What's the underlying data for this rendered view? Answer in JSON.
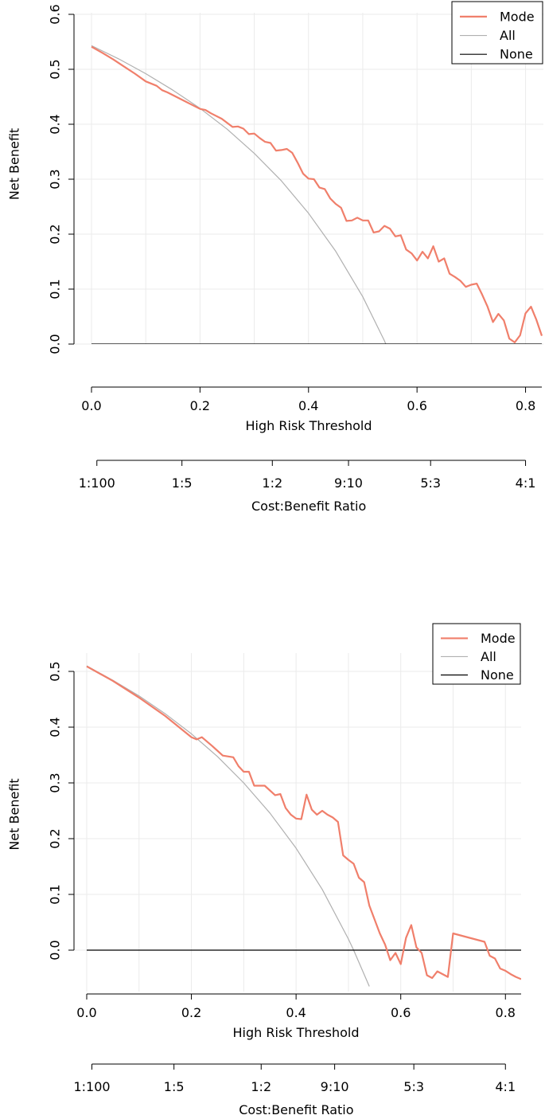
{
  "chart_data": [
    {
      "type": "line",
      "xlabel": "High Risk Threshold",
      "ylabel": "Net Benefit",
      "xlim": [
        0,
        0.83
      ],
      "ylim": [
        0,
        0.6
      ],
      "xticks": [
        "0.0",
        "0.2",
        "0.4",
        "0.6",
        "0.8"
      ],
      "yticks": [
        "0.0",
        "0.1",
        "0.2",
        "0.3",
        "0.4",
        "0.5",
        "0.6"
      ],
      "grid": true,
      "legend_position": "top-right",
      "colors": {
        "model": "#f07f6b",
        "all": "#b0b0b0",
        "none": "#000000",
        "grid": "#ebebeb"
      },
      "series": [
        {
          "name": "Mode",
          "x": [
            0,
            0.02,
            0.04,
            0.06,
            0.08,
            0.1,
            0.12,
            0.13,
            0.14,
            0.16,
            0.18,
            0.2,
            0.21,
            0.22,
            0.24,
            0.26,
            0.27,
            0.28,
            0.29,
            0.3,
            0.31,
            0.32,
            0.33,
            0.34,
            0.35,
            0.36,
            0.37,
            0.38,
            0.39,
            0.4,
            0.41,
            0.42,
            0.43,
            0.44,
            0.45,
            0.46,
            0.47,
            0.48,
            0.49,
            0.5,
            0.51,
            0.52,
            0.53,
            0.54,
            0.55,
            0.56,
            0.57,
            0.58,
            0.59,
            0.6,
            0.61,
            0.62,
            0.63,
            0.64,
            0.65,
            0.66,
            0.67,
            0.68,
            0.69,
            0.7,
            0.71,
            0.72,
            0.73,
            0.74,
            0.75,
            0.76,
            0.77,
            0.78,
            0.79,
            0.8,
            0.81,
            0.82,
            0.83
          ],
          "y": [
            0.541,
            0.53,
            0.518,
            0.505,
            0.492,
            0.478,
            0.47,
            0.462,
            0.458,
            0.448,
            0.438,
            0.428,
            0.426,
            0.42,
            0.41,
            0.395,
            0.396,
            0.392,
            0.382,
            0.383,
            0.375,
            0.368,
            0.366,
            0.352,
            0.353,
            0.355,
            0.348,
            0.33,
            0.31,
            0.301,
            0.3,
            0.285,
            0.282,
            0.265,
            0.255,
            0.248,
            0.224,
            0.225,
            0.23,
            0.225,
            0.225,
            0.203,
            0.205,
            0.215,
            0.21,
            0.196,
            0.198,
            0.172,
            0.165,
            0.152,
            0.168,
            0.156,
            0.178,
            0.15,
            0.156,
            0.128,
            0.122,
            0.115,
            0.104,
            0.108,
            0.11,
            0.09,
            0.068,
            0.04,
            0.055,
            0.043,
            0.01,
            0.003,
            0.016,
            0.056,
            0.068,
            0.044,
            0.015
          ]
        },
        {
          "name": "All",
          "x": [
            0,
            0.05,
            0.1,
            0.15,
            0.2,
            0.25,
            0.3,
            0.35,
            0.4,
            0.45,
            0.5,
            0.54,
            0.57
          ],
          "y": [
            0.543,
            0.519,
            0.492,
            0.462,
            0.429,
            0.391,
            0.347,
            0.297,
            0.238,
            0.169,
            0.086,
            0.006,
            -0.065
          ]
        },
        {
          "name": "None",
          "x": [
            0,
            0.83
          ],
          "y": [
            0,
            0
          ]
        }
      ],
      "secondary_axis": {
        "label": "Cost:Benefit Ratio",
        "ticks": [
          {
            "at": 0.0099,
            "label": "1:100"
          },
          {
            "at": 0.1667,
            "label": "1:5"
          },
          {
            "at": 0.3333,
            "label": "1:2"
          },
          {
            "at": 0.4737,
            "label": "9:10"
          },
          {
            "at": 0.625,
            "label": "5:3"
          },
          {
            "at": 0.8,
            "label": "4:1"
          }
        ]
      }
    },
    {
      "type": "line",
      "xlabel": "High Risk Threshold",
      "ylabel": "Net Benefit",
      "xlim": [
        0,
        0.83
      ],
      "ylim": [
        -0.075,
        0.5
      ],
      "xticks": [
        "0.0",
        "0.2",
        "0.4",
        "0.6",
        "0.8"
      ],
      "yticks": [
        "0.0",
        "0.1",
        "0.2",
        "0.3",
        "0.4",
        "0.5"
      ],
      "grid": true,
      "legend_position": "top-right",
      "colors": {
        "model": "#f07f6b",
        "all": "#b0b0b0",
        "none": "#000000",
        "grid": "#ebebeb"
      },
      "series": [
        {
          "name": "Mode",
          "x": [
            0,
            0.05,
            0.1,
            0.15,
            0.2,
            0.21,
            0.22,
            0.24,
            0.26,
            0.28,
            0.29,
            0.3,
            0.31,
            0.32,
            0.34,
            0.36,
            0.37,
            0.38,
            0.39,
            0.4,
            0.41,
            0.42,
            0.43,
            0.44,
            0.45,
            0.46,
            0.47,
            0.48,
            0.49,
            0.5,
            0.51,
            0.52,
            0.53,
            0.54,
            0.55,
            0.56,
            0.57,
            0.58,
            0.59,
            0.6,
            0.61,
            0.62,
            0.63,
            0.64,
            0.65,
            0.66,
            0.67,
            0.68,
            0.69,
            0.7,
            0.72,
            0.74,
            0.76,
            0.77,
            0.78,
            0.79,
            0.8,
            0.81,
            0.82,
            0.83
          ],
          "y": [
            0.509,
            0.483,
            0.453,
            0.42,
            0.382,
            0.378,
            0.382,
            0.366,
            0.349,
            0.346,
            0.33,
            0.32,
            0.32,
            0.295,
            0.295,
            0.278,
            0.28,
            0.255,
            0.243,
            0.236,
            0.235,
            0.279,
            0.252,
            0.243,
            0.25,
            0.243,
            0.238,
            0.23,
            0.17,
            0.162,
            0.155,
            0.13,
            0.122,
            0.08,
            0.055,
            0.03,
            0.01,
            -0.018,
            -0.005,
            -0.025,
            0.022,
            0.045,
            0.005,
            -0.005,
            -0.045,
            -0.05,
            -0.038,
            -0.043,
            -0.048,
            0.03,
            0.025,
            0.02,
            0.015,
            -0.01,
            -0.015,
            -0.033,
            -0.037,
            -0.043,
            -0.048,
            -0.052
          ]
        },
        {
          "name": "All",
          "x": [
            0,
            0.05,
            0.1,
            0.15,
            0.2,
            0.25,
            0.3,
            0.35,
            0.4,
            0.45,
            0.5,
            0.51,
            0.54
          ],
          "y": [
            0.51,
            0.484,
            0.456,
            0.424,
            0.388,
            0.347,
            0.3,
            0.246,
            0.183,
            0.109,
            0.02,
            0,
            -0.065
          ]
        },
        {
          "name": "None",
          "x": [
            0,
            0.83
          ],
          "y": [
            0,
            0
          ]
        }
      ],
      "secondary_axis": {
        "label": "Cost:Benefit Ratio",
        "ticks": [
          {
            "at": 0.0099,
            "label": "1:100"
          },
          {
            "at": 0.1667,
            "label": "1:5"
          },
          {
            "at": 0.3333,
            "label": "1:2"
          },
          {
            "at": 0.4737,
            "label": "9:10"
          },
          {
            "at": 0.625,
            "label": "5:3"
          },
          {
            "at": 0.8,
            "label": "4:1"
          }
        ]
      }
    }
  ]
}
